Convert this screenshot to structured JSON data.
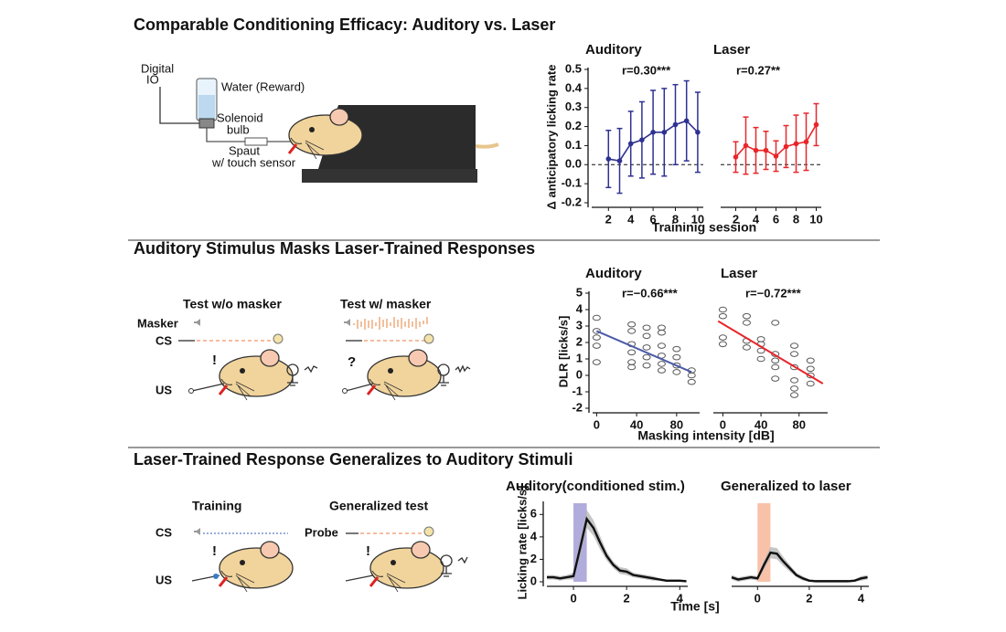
{
  "panels": [
    {
      "title": "Comparable Conditioning Efficacy: Auditory vs. Laser",
      "diagram": {
        "digital_io": [
          "Digital",
          "IO"
        ],
        "water": "Water (Reward)",
        "solenoid": [
          "Solenoid",
          "bulb"
        ],
        "spout": [
          "Spaut",
          "w/ touch sensor"
        ]
      }
    },
    {
      "title": "Auditory Stimulus Masks Laser-Trained Responses",
      "diagram": {
        "conditions": [
          "Test w/o masker",
          "Test w/ masker"
        ],
        "rows": [
          "Masker",
          "CS",
          "US"
        ],
        "marks": [
          "!",
          "?"
        ]
      }
    },
    {
      "title": "Laser-Trained Response Generalizes to Auditory Stimuli",
      "diagram": {
        "conditions": [
          "Training",
          "Generalized test"
        ],
        "rows": [
          "CS",
          "US"
        ],
        "probe": "Probe",
        "marks": [
          "!",
          "!"
        ]
      }
    }
  ],
  "chart_data": [
    {
      "type": "errorbar",
      "title": "Auditory",
      "annotation": "r=0.30***",
      "ylabel": "Δ anticipatory licking rate",
      "xlabel": "Traininig session",
      "x": [
        2,
        3,
        4,
        5,
        6,
        7,
        8,
        9,
        10
      ],
      "values": [
        0.03,
        0.02,
        0.11,
        0.13,
        0.17,
        0.17,
        0.21,
        0.23,
        0.17
      ],
      "errors": [
        0.15,
        0.17,
        0.17,
        0.2,
        0.22,
        0.23,
        0.21,
        0.21,
        0.21
      ],
      "color": "#2e3192",
      "xlim": [
        0.5,
        10.5
      ],
      "xticks": [
        2,
        4,
        6,
        8,
        10
      ],
      "ylim": [
        -0.2,
        0.5
      ],
      "yticks": [
        -0.2,
        -0.1,
        {
          "value": 0,
          "label": "0.0"
        },
        0.1,
        0.2,
        0.3,
        0.4,
        0.5
      ],
      "reference_line": 0
    },
    {
      "type": "errorbar",
      "title": "Laser",
      "annotation": "r=0.27**",
      "x": [
        2,
        3,
        4,
        5,
        6,
        7,
        8,
        9,
        10
      ],
      "values": [
        0.04,
        0.1,
        0.075,
        0.075,
        0.045,
        0.095,
        0.11,
        0.12,
        0.21
      ],
      "errors": [
        0.08,
        0.15,
        0.12,
        0.1,
        0.08,
        0.11,
        0.15,
        0.15,
        0.11
      ],
      "color": "#e8262a",
      "xlim": [
        0.5,
        10.5
      ],
      "xticks": [
        2,
        4,
        6,
        8,
        10
      ],
      "ylim": [
        -0.2,
        0.5
      ],
      "reference_line": 0
    },
    {
      "type": "scatter",
      "title": "Auditory",
      "annotation": "r=−0.66***",
      "ylabel": "DLR [licks/s]",
      "xlabel": "Masking intensity [dB]",
      "x": [
        0,
        0,
        0,
        0,
        0,
        35,
        35,
        35,
        35,
        35,
        35,
        50,
        50,
        50,
        50,
        50,
        65,
        65,
        65,
        65,
        65,
        65,
        80,
        80,
        80,
        80,
        95,
        95,
        95
      ],
      "values": [
        3.5,
        2.7,
        2.3,
        1.8,
        0.8,
        3.1,
        2.7,
        1.9,
        1.4,
        0.8,
        0.5,
        2.9,
        2.4,
        1.7,
        1.1,
        0.6,
        2.9,
        2.6,
        1.8,
        1.2,
        0.7,
        0.3,
        1.6,
        1.1,
        0.6,
        0.2,
        0.3,
        0,
        -0.4
      ],
      "fit": {
        "x": [
          0,
          95
        ],
        "values": [
          2.7,
          0.2
        ],
        "color": "#4a5aa8"
      },
      "xlim": [
        -4,
        103
      ],
      "xticks": [
        0,
        40,
        80
      ],
      "ylim": [
        -2,
        5
      ],
      "yticks": [
        -2,
        -1,
        0,
        1,
        2,
        3,
        4,
        5
      ]
    },
    {
      "type": "scatter",
      "title": "Laser",
      "annotation": "r=−0.72***",
      "x": [
        0,
        0,
        0,
        0,
        25,
        25,
        25,
        25,
        40,
        40,
        40,
        40,
        55,
        55,
        55,
        55,
        55,
        75,
        75,
        75,
        75,
        75,
        75,
        92,
        92,
        92,
        92
      ],
      "values": [
        4,
        3.6,
        2.3,
        1.9,
        3.6,
        3.2,
        2.1,
        1.7,
        2.2,
        1.9,
        1.5,
        1.0,
        3.2,
        1.3,
        0.9,
        0.5,
        -0.2,
        1.8,
        1.3,
        0.5,
        -0.3,
        -0.8,
        -1.2,
        0.9,
        0.4,
        0,
        -0.5
      ],
      "fit": {
        "x": [
          -5,
          105
        ],
        "values": [
          3.3,
          -0.5
        ],
        "color": "#e8262a"
      },
      "xlim": [
        -10,
        110
      ],
      "xticks": [
        0,
        40,
        80
      ],
      "ylim": [
        -2,
        5
      ]
    },
    {
      "type": "line",
      "title": "Auditory(conditioned stim.)",
      "ylabel": "Licking rate [licks/s]",
      "xlabel": "Time [s]",
      "x": [
        -1,
        -0.75,
        -0.5,
        -0.25,
        0,
        0.25,
        0.5,
        0.75,
        1,
        1.25,
        1.5,
        1.75,
        2,
        2.25,
        2.5,
        2.75,
        3,
        3.25,
        3.5,
        3.75,
        4,
        4.25
      ],
      "values": [
        0.4,
        0.4,
        0.3,
        0.4,
        0.5,
        3.0,
        5.6,
        4.8,
        3.5,
        2.3,
        1.5,
        1.0,
        0.9,
        0.6,
        0.5,
        0.4,
        0.3,
        0.2,
        0.1,
        0.1,
        0.1,
        0.05
      ],
      "errors": [
        0.2,
        0.2,
        0.2,
        0.2,
        0.3,
        0.6,
        0.8,
        0.7,
        0.6,
        0.4,
        0.3,
        0.3,
        0.3,
        0.2,
        0.2,
        0.2,
        0.2,
        0.1,
        0.1,
        0.1,
        0.1,
        0.1
      ],
      "color": "#111111",
      "band_color": "#b8b8b8",
      "stim_window": [
        0,
        0.5
      ],
      "stim_color": "#9590cf",
      "xlim": [
        -1,
        4.3
      ],
      "xticks": [
        0,
        2,
        4
      ],
      "ylim": [
        0,
        7
      ],
      "yticks": [
        0,
        2,
        4,
        6
      ]
    },
    {
      "type": "line",
      "title": "Generalized to laser",
      "x": [
        -1,
        -0.75,
        -0.5,
        -0.25,
        0,
        0.25,
        0.5,
        0.75,
        1,
        1.25,
        1.5,
        1.75,
        2,
        2.25,
        2.5,
        2.75,
        3,
        3.25,
        3.5,
        3.75,
        4,
        4.25
      ],
      "values": [
        0.4,
        0.2,
        0.3,
        0.4,
        0.3,
        1.5,
        2.6,
        2.5,
        1.8,
        1.2,
        0.6,
        0.3,
        0.1,
        0.05,
        0.05,
        0.05,
        0.05,
        0.05,
        0.05,
        0.1,
        0.3,
        0.4
      ],
      "errors": [
        0.2,
        0.2,
        0.2,
        0.2,
        0.2,
        0.4,
        0.5,
        0.5,
        0.4,
        0.3,
        0.2,
        0.2,
        0.1,
        0.1,
        0.1,
        0.1,
        0.1,
        0.1,
        0.1,
        0.1,
        0.2,
        0.2
      ],
      "color": "#111111",
      "band_color": "#b8b8b8",
      "stim_window": [
        0,
        0.5
      ],
      "stim_color": "#f6ad8c",
      "xlim": [
        -1,
        4.3
      ],
      "xticks": [
        0,
        2,
        4
      ],
      "ylim": [
        0,
        7
      ]
    }
  ]
}
